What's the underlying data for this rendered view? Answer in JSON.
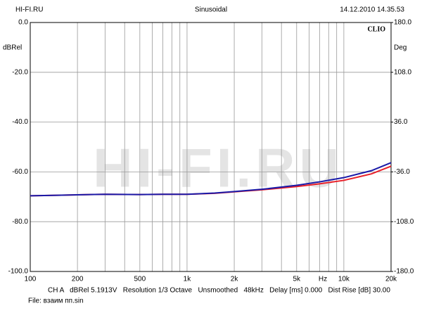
{
  "chart_data": {
    "type": "line",
    "header_left": "HI-FI.RU",
    "title": "Sinusoidal",
    "header_right": "14.12.2010 14.35.53",
    "logo": "CLIO",
    "ylabel": "dBRel",
    "y2label": "Deg",
    "xlabel": "Hz",
    "watermark": "HI-FI.RU",
    "footer": "CH A   dBRel 5.1913V   Resolution 1/3 Octave   Unsmoothed   48kHz   Delay [ms] 0.000   Dist Rise [dB] 30.00",
    "file": "File: взаим пп.sin",
    "xscale": "log",
    "grid": true,
    "xlim": [
      100,
      20000
    ],
    "xticks": [
      100,
      200,
      500,
      {
        "value": 1000,
        "label": "1k"
      },
      {
        "value": 2000,
        "label": "2k"
      },
      {
        "value": 5000,
        "label": "5k"
      },
      {
        "value": 10000,
        "label": "10k"
      },
      {
        "value": 20000,
        "label": "20k"
      }
    ],
    "xgrid": [
      300,
      400,
      600,
      700,
      800,
      900,
      3000,
      4000,
      6000,
      7000,
      8000,
      9000
    ],
    "ylim": [
      -100,
      0
    ],
    "yticks": [
      {
        "value": 0,
        "label": "0.0"
      },
      {
        "value": -20,
        "label": "-20.0"
      },
      {
        "value": -40,
        "label": "-40.0"
      },
      {
        "value": -60,
        "label": "-60.0"
      },
      {
        "value": -80,
        "label": "-80.0"
      },
      {
        "value": -100,
        "label": "-100.0"
      }
    ],
    "y2lim": [
      -180,
      180
    ],
    "y2ticks": [
      {
        "value": 180,
        "label": "180.0"
      },
      {
        "value": 108,
        "label": "108.0"
      },
      {
        "value": 36,
        "label": "36.0"
      },
      {
        "value": -36,
        "label": "-36.0"
      },
      {
        "value": -108,
        "label": "-108.0"
      },
      {
        "value": -180,
        "label": "-180.0"
      }
    ],
    "x": [
      100,
      150,
      200,
      300,
      500,
      700,
      1000,
      1500,
      2000,
      3000,
      5000,
      7000,
      10000,
      15000,
      20000
    ],
    "series": [
      {
        "color": "#e8202a",
        "values": [
          -69.6,
          -69.4,
          -69.2,
          -69.0,
          -69.1,
          -69.0,
          -69.0,
          -68.6,
          -68.0,
          -67.2,
          -65.9,
          -64.8,
          -63.4,
          -60.8,
          -57.7
        ]
      },
      {
        "color": "#1a1aa8",
        "values": [
          -69.6,
          -69.4,
          -69.2,
          -69.0,
          -69.1,
          -69.0,
          -69.0,
          -68.5,
          -67.9,
          -67.0,
          -65.4,
          -64.0,
          -62.3,
          -59.5,
          -56.3
        ]
      }
    ]
  }
}
